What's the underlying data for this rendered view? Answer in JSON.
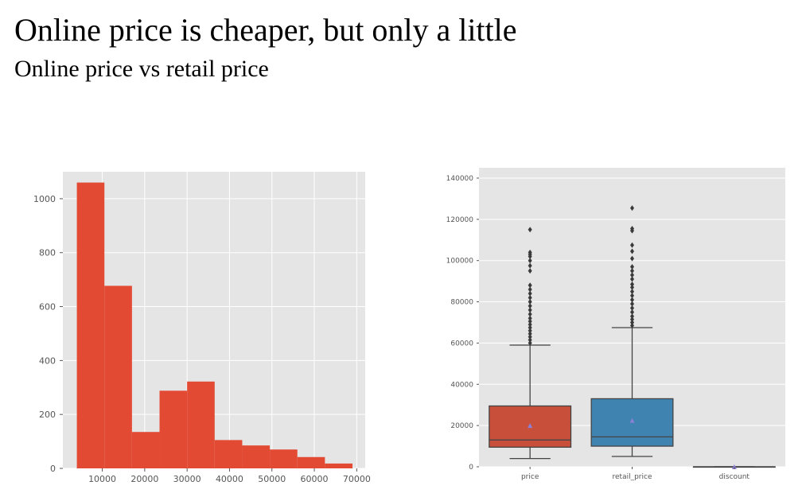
{
  "slide": {
    "title": "Online price is cheaper, but only a little",
    "subtitle": "Online price vs retail price"
  },
  "colors": {
    "background": "#e5e5e5",
    "grid": "#ffffff",
    "hist_bar": "#e24a33",
    "box_price": "#c8503b",
    "box_retail": "#3f83b0",
    "mean_marker": "#8b7fd6",
    "whisker": "#444444"
  },
  "chart_data": [
    {
      "type": "bar",
      "subtype": "histogram",
      "bins": [
        {
          "x0": 4000,
          "x1": 10500,
          "count": 1060
        },
        {
          "x0": 10500,
          "x1": 17000,
          "count": 677
        },
        {
          "x0": 17000,
          "x1": 23500,
          "count": 135
        },
        {
          "x0": 23500,
          "x1": 30000,
          "count": 288
        },
        {
          "x0": 30000,
          "x1": 36500,
          "count": 322
        },
        {
          "x0": 36500,
          "x1": 43000,
          "count": 105
        },
        {
          "x0": 43000,
          "x1": 49500,
          "count": 85
        },
        {
          "x0": 49500,
          "x1": 56000,
          "count": 70
        },
        {
          "x0": 56000,
          "x1": 62500,
          "count": 42
        },
        {
          "x0": 62500,
          "x1": 69000,
          "count": 18
        }
      ],
      "xlim": [
        700,
        72000
      ],
      "ylim": [
        0,
        1100
      ],
      "xticks": [
        10000,
        20000,
        30000,
        40000,
        50000,
        60000,
        70000
      ],
      "yticks": [
        0,
        200,
        400,
        600,
        800,
        1000
      ],
      "grid": true
    },
    {
      "type": "box",
      "categories": [
        "price",
        "retail_price",
        "discount"
      ],
      "ylim": [
        0,
        145000
      ],
      "yticks": [
        0,
        20000,
        40000,
        60000,
        80000,
        100000,
        120000,
        140000
      ],
      "boxes": [
        {
          "name": "price",
          "whisker_low": 4000,
          "q1": 9500,
          "median": 13000,
          "q3": 29500,
          "whisker_high": 59000,
          "mean": 20000,
          "outliers": [
            60000,
            61500,
            63000,
            64500,
            66000,
            67500,
            69000,
            70500,
            72000,
            74000,
            76000,
            78000,
            80000,
            82000,
            84000,
            86000,
            88000,
            95000,
            97500,
            100000,
            102000,
            103000,
            104000,
            115000
          ]
        },
        {
          "name": "retail_price",
          "whisker_low": 5000,
          "q1": 10000,
          "median": 14500,
          "q3": 33000,
          "whisker_high": 67500,
          "mean": 22500,
          "outliers": [
            68500,
            70000,
            71500,
            73000,
            75000,
            77000,
            79000,
            81000,
            83000,
            85000,
            87000,
            88500,
            91000,
            93000,
            95000,
            97000,
            101000,
            104500,
            107500,
            114500,
            115500,
            125500
          ]
        },
        {
          "name": "discount",
          "whisker_low": 0,
          "q1": 0,
          "median": 0,
          "q3": 0,
          "whisker_high": 0,
          "mean": 0,
          "outliers": []
        }
      ],
      "grid": true
    }
  ]
}
